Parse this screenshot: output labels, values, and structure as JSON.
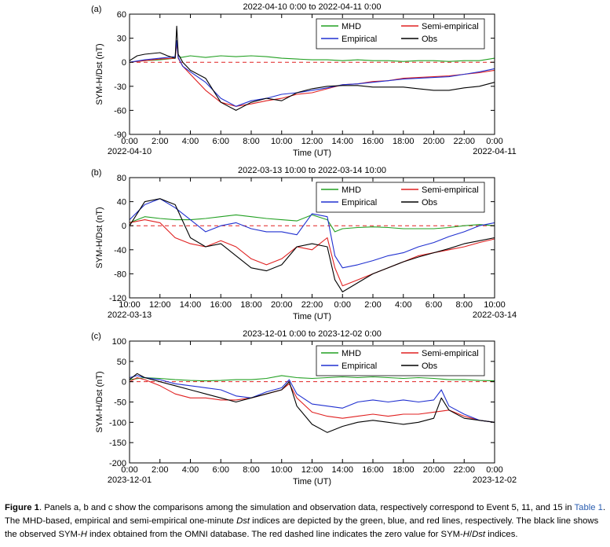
{
  "chart_data": [
    {
      "type": "line",
      "panel": "(a)",
      "title": "2022-04-10 0:00 to 2022-04-11 0:00",
      "xlabel": "Time (UT)",
      "ylabel": "SYM-H/Dst (nT)",
      "xlim": [
        0,
        24
      ],
      "ylim": [
        -90,
        60
      ],
      "yticks": [
        -90,
        -60,
        -30,
        0,
        30,
        60
      ],
      "xticks": [
        0,
        2,
        4,
        6,
        8,
        10,
        12,
        14,
        16,
        18,
        20,
        22,
        24
      ],
      "xtick_labels": [
        "0:00",
        "2:00",
        "4:00",
        "6:00",
        "8:00",
        "10:00",
        "12:00",
        "14:00",
        "16:00",
        "18:00",
        "20:00",
        "22:00",
        "0:00"
      ],
      "start_date": "2022-04-10",
      "end_date": "2022-04-11",
      "legend": {
        "placement": "top-right"
      },
      "zero_line": true,
      "series": [
        {
          "name": "MHD",
          "color": "#22a022",
          "x": [
            0,
            1,
            2,
            3,
            3.1,
            3.2,
            3.4,
            4,
            5,
            6,
            7,
            8,
            9,
            10,
            11,
            12,
            13,
            14,
            15,
            16,
            17,
            18,
            19,
            20,
            21,
            22,
            23,
            24
          ],
          "y": [
            0,
            2,
            3,
            5,
            25,
            8,
            6,
            8,
            6,
            8,
            7,
            8,
            7,
            5,
            4,
            3,
            3,
            2,
            3,
            2,
            2,
            1,
            2,
            2,
            1,
            2,
            2,
            5
          ]
        },
        {
          "name": "Semi-empirical",
          "color": "#e02020",
          "x": [
            0,
            1,
            2,
            3,
            3.1,
            3.2,
            3.5,
            4,
            5,
            6,
            7,
            8,
            9,
            10,
            11,
            12,
            13,
            14,
            15,
            16,
            17,
            18,
            19,
            20,
            21,
            22,
            23,
            24
          ],
          "y": [
            0,
            2,
            4,
            5,
            25,
            5,
            -5,
            -15,
            -35,
            -50,
            -55,
            -52,
            -48,
            -45,
            -40,
            -38,
            -33,
            -28,
            -27,
            -24,
            -23,
            -20,
            -19,
            -18,
            -17,
            -15,
            -13,
            -10
          ]
        },
        {
          "name": "Empirical",
          "color": "#2030d0",
          "x": [
            0,
            1,
            2,
            3,
            3.1,
            3.2,
            3.5,
            4,
            5,
            6,
            7,
            8,
            9,
            10,
            11,
            12,
            13,
            14,
            15,
            16,
            17,
            18,
            19,
            20,
            21,
            22,
            23,
            24
          ],
          "y": [
            0,
            3,
            5,
            7,
            27,
            6,
            -5,
            -12,
            -25,
            -45,
            -55,
            -48,
            -45,
            -40,
            -38,
            -35,
            -32,
            -28,
            -27,
            -25,
            -23,
            -21,
            -20,
            -19,
            -18,
            -15,
            -12,
            -8
          ]
        },
        {
          "name": "Obs",
          "color": "#000000",
          "x": [
            0,
            0.5,
            1,
            2,
            2.5,
            3,
            3.1,
            3.2,
            3.5,
            4,
            5,
            5.5,
            6,
            7,
            8,
            9,
            10,
            11,
            12,
            13,
            14,
            15,
            16,
            17,
            18,
            19,
            20,
            21,
            22,
            23,
            24
          ],
          "y": [
            2,
            8,
            10,
            12,
            8,
            5,
            45,
            10,
            0,
            -10,
            -20,
            -35,
            -50,
            -60,
            -50,
            -45,
            -48,
            -38,
            -33,
            -30,
            -29,
            -29,
            -31,
            -31,
            -31,
            -33,
            -35,
            -35,
            -32,
            -30,
            -25
          ]
        }
      ]
    },
    {
      "type": "line",
      "panel": "(b)",
      "title": "2022-03-13 10:00 to 2022-03-14 10:00",
      "xlabel": "Time (UT)",
      "ylabel": "SYM-H/Dst (nT)",
      "xlim": [
        10,
        34
      ],
      "ylim": [
        -120,
        80
      ],
      "yticks": [
        -120,
        -80,
        -40,
        0,
        40,
        80
      ],
      "xticks": [
        10,
        12,
        14,
        16,
        18,
        20,
        22,
        24,
        26,
        28,
        30,
        32,
        34
      ],
      "xtick_labels": [
        "10:00",
        "12:00",
        "14:00",
        "16:00",
        "18:00",
        "20:00",
        "22:00",
        "0:00",
        "2:00",
        "4:00",
        "6:00",
        "8:00",
        "10:00"
      ],
      "start_date": "2022-03-13",
      "end_date": "2022-03-14",
      "legend": {
        "placement": "top-right"
      },
      "zero_line": true,
      "series": [
        {
          "name": "MHD",
          "color": "#22a022",
          "x": [
            10,
            11,
            12,
            13,
            14,
            15,
            16,
            17,
            18,
            19,
            20,
            21,
            22,
            23,
            23.5,
            24,
            25,
            26,
            27,
            28,
            29,
            30,
            31,
            32,
            33,
            34
          ],
          "y": [
            5,
            15,
            12,
            10,
            10,
            12,
            15,
            18,
            15,
            12,
            10,
            8,
            18,
            10,
            -10,
            -5,
            -3,
            -2,
            -3,
            -5,
            -5,
            -5,
            -3,
            0,
            2,
            0
          ]
        },
        {
          "name": "Semi-empirical",
          "color": "#e02020",
          "x": [
            10,
            11,
            12,
            13,
            14,
            15,
            16,
            17,
            18,
            19,
            20,
            21,
            22,
            23,
            23.5,
            24,
            25,
            26,
            27,
            28,
            29,
            30,
            31,
            32,
            33,
            34
          ],
          "y": [
            5,
            10,
            5,
            -20,
            -30,
            -35,
            -25,
            -35,
            -55,
            -65,
            -55,
            -35,
            -40,
            -20,
            -70,
            -100,
            -90,
            -80,
            -70,
            -60,
            -50,
            -45,
            -40,
            -35,
            -28,
            -22
          ]
        },
        {
          "name": "Empirical",
          "color": "#2030d0",
          "x": [
            10,
            11,
            12,
            13,
            14,
            15,
            16,
            17,
            18,
            19,
            20,
            21,
            22,
            23,
            23.5,
            24,
            25,
            26,
            27,
            28,
            29,
            30,
            31,
            32,
            33,
            34
          ],
          "y": [
            10,
            35,
            45,
            30,
            10,
            -10,
            0,
            5,
            -5,
            -10,
            -10,
            -15,
            20,
            15,
            -50,
            -70,
            -65,
            -58,
            -50,
            -45,
            -35,
            -28,
            -18,
            -10,
            0,
            5
          ]
        },
        {
          "name": "Obs",
          "color": "#000000",
          "x": [
            10,
            11,
            12,
            13,
            14,
            15,
            16,
            17,
            18,
            19,
            20,
            21,
            22,
            23,
            23.5,
            24,
            25,
            26,
            27,
            28,
            29,
            30,
            31,
            32,
            33,
            34
          ],
          "y": [
            0,
            40,
            45,
            35,
            -20,
            -35,
            -30,
            -50,
            -70,
            -75,
            -65,
            -35,
            -30,
            -35,
            -90,
            -110,
            -95,
            -80,
            -70,
            -60,
            -52,
            -45,
            -38,
            -30,
            -25,
            -20
          ]
        }
      ]
    },
    {
      "type": "line",
      "panel": "(c)",
      "title": "2023-12-01 0:00 to 2023-12-02 0:00",
      "xlabel": "Time (UT)",
      "ylabel": "SYM-H/Dst (nT)",
      "xlim": [
        0,
        24
      ],
      "ylim": [
        -200,
        100
      ],
      "yticks": [
        -200,
        -150,
        -100,
        -50,
        0,
        50,
        100
      ],
      "xticks": [
        0,
        2,
        4,
        6,
        8,
        10,
        12,
        14,
        16,
        18,
        20,
        22,
        24
      ],
      "xtick_labels": [
        "0:00",
        "2:00",
        "4:00",
        "6:00",
        "8:00",
        "10:00",
        "12:00",
        "14:00",
        "16:00",
        "18:00",
        "20:00",
        "22:00",
        "0:00"
      ],
      "start_date": "2023-12-01",
      "end_date": "2023-12-02",
      "legend": {
        "placement": "top-right"
      },
      "zero_line": true,
      "series": [
        {
          "name": "MHD",
          "color": "#22a022",
          "x": [
            0,
            1,
            2,
            3,
            4,
            5,
            6,
            7,
            8,
            9,
            10,
            11,
            12,
            13,
            14,
            15,
            16,
            17,
            18,
            19,
            20,
            21,
            22,
            23,
            24
          ],
          "y": [
            5,
            10,
            8,
            5,
            3,
            2,
            3,
            5,
            5,
            8,
            15,
            10,
            8,
            10,
            12,
            10,
            12,
            10,
            8,
            10,
            8,
            5,
            5,
            3,
            2
          ]
        },
        {
          "name": "Semi-empirical",
          "color": "#e02020",
          "x": [
            0,
            0.5,
            1,
            2,
            3,
            4,
            5,
            6,
            7,
            8,
            9,
            10,
            10.5,
            11,
            12,
            13,
            14,
            15,
            16,
            17,
            18,
            19,
            20,
            21,
            22,
            23,
            24
          ],
          "y": [
            0,
            10,
            5,
            -10,
            -30,
            -40,
            -40,
            -45,
            -45,
            -40,
            -30,
            -20,
            -5,
            -40,
            -75,
            -85,
            -90,
            -85,
            -80,
            -85,
            -80,
            -80,
            -75,
            -70,
            -85,
            -95,
            -100
          ]
        },
        {
          "name": "Empirical",
          "color": "#2030d0",
          "x": [
            0,
            0.5,
            1,
            2,
            3,
            4,
            5,
            6,
            7,
            8,
            9,
            10,
            10.5,
            11,
            12,
            13,
            14,
            15,
            16,
            17,
            18,
            19,
            20,
            20.5,
            21,
            22,
            23,
            24
          ],
          "y": [
            10,
            15,
            10,
            5,
            -5,
            -10,
            -15,
            -20,
            -35,
            -40,
            -25,
            -15,
            5,
            -30,
            -55,
            -60,
            -65,
            -50,
            -45,
            -50,
            -45,
            -50,
            -45,
            -20,
            -60,
            -80,
            -95,
            -100
          ]
        },
        {
          "name": "Obs",
          "color": "#000000",
          "x": [
            0,
            0.5,
            1,
            2,
            3,
            4,
            5,
            6,
            7,
            8,
            9,
            10,
            10.5,
            11,
            12,
            13,
            14,
            15,
            16,
            17,
            18,
            19,
            20,
            20.5,
            21,
            22,
            23,
            24
          ],
          "y": [
            5,
            20,
            10,
            0,
            -10,
            -20,
            -30,
            -40,
            -50,
            -40,
            -30,
            -20,
            0,
            -60,
            -105,
            -125,
            -110,
            -100,
            -95,
            -100,
            -105,
            -100,
            -90,
            -40,
            -70,
            -90,
            -95,
            -100
          ]
        }
      ]
    }
  ],
  "caption": {
    "label": "Figure 1",
    "text1": ". Panels a, b and c show the comparisons among the simulation and observation data, respectively correspond to Event 5, 11, and 15 in ",
    "table_ref": "Table 1",
    "text2": ". The MHD-based, empirical and semi-empirical one-minute ",
    "dst": "Dst",
    "text3": " indices are depicted by the green, blue, and red lines, respectively. The black line shows the observed SYM-",
    "h": "H",
    "text4": " index obtained from the OMNI database. The red dashed line indicates the zero value for SYM-",
    "h2": "H",
    "slash": "/",
    "dst2": "Dst",
    "text5": " indices."
  }
}
